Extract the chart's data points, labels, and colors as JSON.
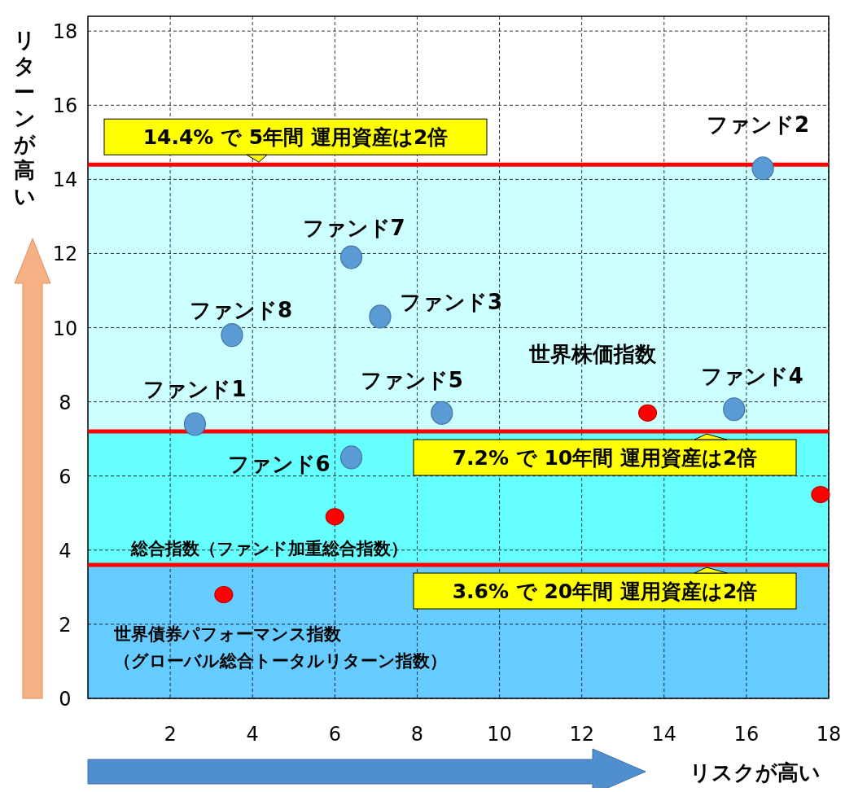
{
  "chart_data": {
    "type": "scatter",
    "xlabel": "リスクが高い",
    "ylabel": "リターンが高い",
    "xlim": [
      0,
      18
    ],
    "ylim": [
      0,
      18.4
    ],
    "xticks": [
      2,
      4,
      6,
      8,
      10,
      12,
      14,
      16,
      18
    ],
    "yticks": [
      0,
      2,
      4,
      6,
      8,
      10,
      12,
      14,
      16,
      18
    ],
    "grid": true,
    "marker": "circle",
    "series": [
      {
        "color": "#5b9bd5",
        "x": [
          2.6,
          16.4,
          7.1,
          15.7,
          8.6,
          6.4,
          6.4,
          3.5
        ],
        "values": [
          7.4,
          14.3,
          10.3,
          7.8,
          7.7,
          6.5,
          11.9,
          9.8
        ]
      },
      {
        "color": "#ff0000",
        "x": [
          13.6,
          17.8,
          6.0,
          3.3
        ],
        "values": [
          7.7,
          5.5,
          4.9,
          2.8
        ]
      }
    ],
    "bands": [
      {
        "axis": "y",
        "from": 0,
        "to": 3.6,
        "color": "#66ccff"
      },
      {
        "axis": "y",
        "from": 3.6,
        "to": 7.2,
        "color": "#66ffff"
      },
      {
        "axis": "y",
        "from": 7.2,
        "to": 14.4,
        "color": "#ccffff"
      }
    ],
    "ref_lines": [
      {
        "axis": "y",
        "value": 14.4,
        "label": "14.4% で 5年間  運用資産は2倍",
        "color": "#ff0000"
      },
      {
        "axis": "y",
        "value": 7.2,
        "label": "7.2% で 10年間  運用資産は2倍",
        "color": "#ff0000"
      },
      {
        "axis": "y",
        "value": 3.6,
        "label": "3.6% で 20年間  運用資産は2倍",
        "color": "#ff0000"
      }
    ],
    "annotations": [
      {
        "text": "ファンド1",
        "x": 2.6,
        "y": 7.4
      },
      {
        "text": "ファンド2",
        "x": 16.4,
        "y": 14.3
      },
      {
        "text": "ファンド3",
        "x": 7.1,
        "y": 10.3
      },
      {
        "text": "ファンド4",
        "x": 15.7,
        "y": 7.8
      },
      {
        "text": "ファンド5",
        "x": 8.6,
        "y": 7.7
      },
      {
        "text": "ファンド6",
        "x": 6.4,
        "y": 6.5
      },
      {
        "text": "ファンド7",
        "x": 6.4,
        "y": 11.9
      },
      {
        "text": "ファンド8",
        "x": 3.5,
        "y": 9.8
      },
      {
        "text": "世界株価指数",
        "x": 13.6,
        "y": 7.7
      },
      {
        "text": "総合指数（ファンド加重総合指数）",
        "x": 6.0,
        "y": 4.9
      },
      {
        "text": "世界債券パフォーマンス指数",
        "x": 3.3,
        "y": 2.8
      },
      "（グローバル総合トータルリターン指数）"
    ]
  }
}
